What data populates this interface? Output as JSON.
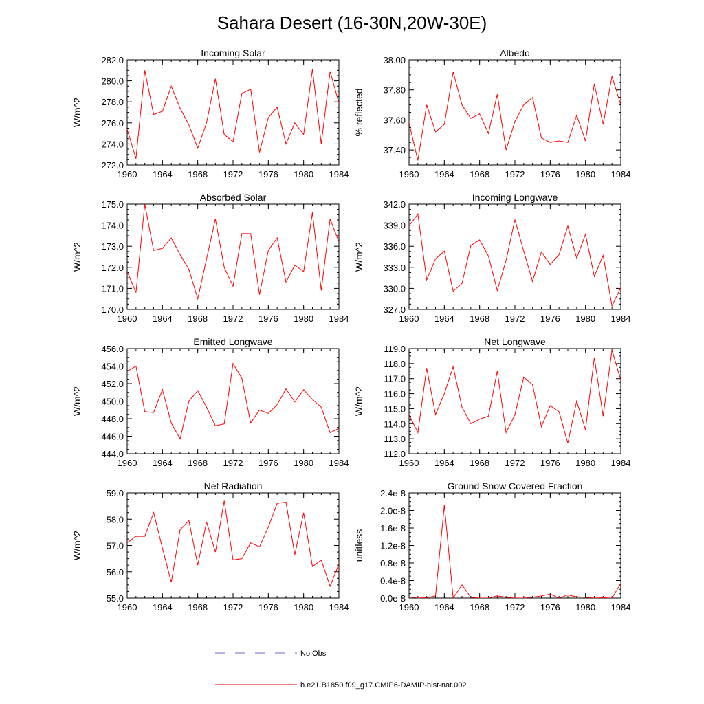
{
  "figure": {
    "title": "Sahara Desert (16-30N,20W-30E)"
  },
  "legend": {
    "items": [
      {
        "label": "No Obs",
        "color": "#6a6ad0",
        "dash": true
      },
      {
        "label": "b.e21.B1850.f09_g17.CMIP6-DAMIP-hist-nat.002",
        "color": "#ff0000",
        "dash": false
      }
    ]
  },
  "chart_data": [
    {
      "type": "line",
      "title": "Incoming Solar",
      "ylabel": "W/m^2",
      "xlim": [
        1960,
        1984
      ],
      "ylim": [
        272.0,
        282.0
      ],
      "xticks": [
        "1960",
        "1964",
        "1968",
        "1972",
        "1976",
        "1980",
        "1984"
      ],
      "yticks": [
        "272.0",
        "274.0",
        "276.0",
        "278.0",
        "280.0",
        "282.0"
      ],
      "x": [
        1960,
        1961,
        1962,
        1963,
        1964,
        1965,
        1966,
        1967,
        1968,
        1969,
        1970,
        1971,
        1972,
        1973,
        1974,
        1975,
        1976,
        1977,
        1978,
        1979,
        1980,
        1981,
        1982,
        1983,
        1984
      ],
      "series": [
        {
          "color": "#ff0000",
          "values": [
            275.4,
            272.6,
            281.0,
            276.8,
            277.1,
            279.5,
            277.4,
            275.8,
            273.6,
            276.0,
            280.2,
            274.9,
            274.2,
            278.8,
            279.2,
            273.2,
            276.5,
            277.5,
            274.0,
            276.0,
            274.9,
            281.1,
            274.0,
            280.9,
            277.9
          ]
        }
      ]
    },
    {
      "type": "line",
      "title": "Albedo",
      "ylabel": "% reflected",
      "xlim": [
        1960,
        1984
      ],
      "ylim": [
        37.3,
        38.0
      ],
      "xticks": [
        "1960",
        "1964",
        "1968",
        "1972",
        "1976",
        "1980",
        "1984"
      ],
      "yticks": [
        "37.40",
        "37.60",
        "37.80",
        "38.00"
      ],
      "ytickvals": [
        37.4,
        37.6,
        37.8,
        38.0
      ],
      "x": [
        1960,
        1961,
        1962,
        1963,
        1964,
        1965,
        1966,
        1967,
        1968,
        1969,
        1970,
        1971,
        1972,
        1973,
        1974,
        1975,
        1976,
        1977,
        1978,
        1979,
        1980,
        1981,
        1982,
        1983,
        1984
      ],
      "series": [
        {
          "color": "#ff0000",
          "values": [
            37.58,
            37.33,
            37.7,
            37.52,
            37.57,
            37.92,
            37.7,
            37.61,
            37.64,
            37.51,
            37.77,
            37.4,
            37.59,
            37.7,
            37.75,
            37.48,
            37.45,
            37.46,
            37.45,
            37.63,
            37.46,
            37.84,
            37.57,
            37.89,
            37.7
          ]
        }
      ]
    },
    {
      "type": "line",
      "title": "Absorbed Solar",
      "ylabel": "W/m^2",
      "xlim": [
        1960,
        1984
      ],
      "ylim": [
        170.0,
        175.0
      ],
      "xticks": [
        "1960",
        "1964",
        "1968",
        "1972",
        "1976",
        "1980",
        "1984"
      ],
      "yticks": [
        "170.0",
        "171.0",
        "172.0",
        "173.0",
        "174.0",
        "175.0"
      ],
      "x": [
        1960,
        1961,
        1962,
        1963,
        1964,
        1965,
        1966,
        1967,
        1968,
        1969,
        1970,
        1971,
        1972,
        1973,
        1974,
        1975,
        1976,
        1977,
        1978,
        1979,
        1980,
        1981,
        1982,
        1983,
        1984
      ],
      "series": [
        {
          "color": "#ff0000",
          "values": [
            171.8,
            170.8,
            175.0,
            172.8,
            172.9,
            173.4,
            172.6,
            171.9,
            170.5,
            172.4,
            174.3,
            172.0,
            171.1,
            173.6,
            173.6,
            170.7,
            172.8,
            173.4,
            171.3,
            172.1,
            171.8,
            174.6,
            170.9,
            174.3,
            173.2
          ]
        }
      ]
    },
    {
      "type": "line",
      "title": "Incoming Longwave",
      "ylabel": "W/m^2",
      "xlim": [
        1960,
        1984
      ],
      "ylim": [
        327.0,
        342.0
      ],
      "xticks": [
        "1960",
        "1964",
        "1968",
        "1972",
        "1976",
        "1980",
        "1984"
      ],
      "yticks": [
        "327.0",
        "330.0",
        "333.0",
        "336.0",
        "339.0",
        "342.0"
      ],
      "x": [
        1960,
        1961,
        1962,
        1963,
        1964,
        1965,
        1966,
        1967,
        1968,
        1969,
        1970,
        1971,
        1972,
        1973,
        1974,
        1975,
        1976,
        1977,
        1978,
        1979,
        1980,
        1981,
        1982,
        1983,
        1984
      ],
      "series": [
        {
          "color": "#ff0000",
          "values": [
            338.9,
            340.6,
            331.2,
            334.2,
            335.3,
            329.6,
            330.7,
            336.1,
            336.9,
            334.6,
            329.7,
            334.0,
            339.8,
            335.3,
            331.0,
            335.2,
            333.4,
            334.8,
            338.9,
            334.3,
            337.7,
            331.7,
            334.7,
            327.5,
            330.1
          ]
        }
      ]
    },
    {
      "type": "line",
      "title": "Emitted Longwave",
      "ylabel": "W/m^2",
      "xlim": [
        1960,
        1984
      ],
      "ylim": [
        444.0,
        456.0
      ],
      "xticks": [
        "1960",
        "1964",
        "1968",
        "1972",
        "1976",
        "1980",
        "1984"
      ],
      "yticks": [
        "444.0",
        "446.0",
        "448.0",
        "450.0",
        "452.0",
        "454.0",
        "456.0"
      ],
      "x": [
        1960,
        1961,
        1962,
        1963,
        1964,
        1965,
        1966,
        1967,
        1968,
        1969,
        1970,
        1971,
        1972,
        1973,
        1974,
        1975,
        1976,
        1977,
        1978,
        1979,
        1980,
        1981,
        1982,
        1983,
        1984
      ],
      "series": [
        {
          "color": "#ff0000",
          "values": [
            453.4,
            454.0,
            448.8,
            448.7,
            451.3,
            447.5,
            445.7,
            450.0,
            451.2,
            449.3,
            447.2,
            447.4,
            454.3,
            452.6,
            447.5,
            449.0,
            448.6,
            449.6,
            451.4,
            449.9,
            451.3,
            450.2,
            449.3,
            446.4,
            446.9
          ]
        }
      ]
    },
    {
      "type": "line",
      "title": "Net Longwave",
      "ylabel": "W/m^2",
      "xlim": [
        1960,
        1984
      ],
      "ylim": [
        112.0,
        119.0
      ],
      "xticks": [
        "1960",
        "1964",
        "1968",
        "1972",
        "1976",
        "1980",
        "1984"
      ],
      "yticks": [
        "112.0",
        "113.0",
        "114.0",
        "115.0",
        "116.0",
        "117.0",
        "118.0",
        "119.0"
      ],
      "x": [
        1960,
        1961,
        1962,
        1963,
        1964,
        1965,
        1966,
        1967,
        1968,
        1969,
        1970,
        1971,
        1972,
        1973,
        1974,
        1975,
        1976,
        1977,
        1978,
        1979,
        1980,
        1981,
        1982,
        1983,
        1984
      ],
      "series": [
        {
          "color": "#ff0000",
          "values": [
            114.6,
            113.4,
            117.7,
            114.6,
            116.0,
            117.8,
            115.1,
            114.0,
            114.3,
            114.5,
            117.5,
            113.4,
            114.6,
            117.1,
            116.6,
            113.8,
            115.2,
            114.8,
            112.7,
            115.5,
            113.6,
            118.4,
            114.5,
            118.9,
            116.9
          ]
        }
      ]
    },
    {
      "type": "line",
      "title": "Net Radiation",
      "ylabel": "W/m^2",
      "xlim": [
        1960,
        1984
      ],
      "ylim": [
        55.0,
        59.0
      ],
      "xticks": [
        "1960",
        "1964",
        "1968",
        "1972",
        "1976",
        "1980",
        "1984"
      ],
      "yticks": [
        "55.0",
        "56.0",
        "57.0",
        "58.0",
        "59.0"
      ],
      "x": [
        1960,
        1961,
        1962,
        1963,
        1964,
        1965,
        1966,
        1967,
        1968,
        1969,
        1970,
        1971,
        1972,
        1973,
        1974,
        1975,
        1976,
        1977,
        1978,
        1979,
        1980,
        1981,
        1982,
        1983,
        1984
      ],
      "series": [
        {
          "color": "#ff0000",
          "values": [
            57.1,
            57.35,
            57.35,
            58.25,
            56.9,
            55.6,
            57.6,
            57.95,
            56.25,
            57.9,
            56.75,
            58.7,
            56.45,
            56.5,
            57.1,
            56.95,
            57.7,
            58.6,
            58.65,
            56.65,
            58.25,
            56.2,
            56.45,
            55.45,
            56.3
          ]
        }
      ]
    },
    {
      "type": "line",
      "title": "Ground Snow Covered Fraction",
      "ylabel": "unitless",
      "xlim": [
        1960,
        1984
      ],
      "ylim": [
        0,
        2.4e-08
      ],
      "xticks": [
        "1960",
        "1964",
        "1968",
        "1972",
        "1976",
        "1980",
        "1984"
      ],
      "yticks": [
        "0.0e-8",
        "0.4e-8",
        "0.8e-8",
        "1.2e-8",
        "1.6e-8",
        "2.0e-8",
        "2.4e-8"
      ],
      "ytickvals": [
        0,
        4e-09,
        8e-09,
        1.2e-08,
        1.6e-08,
        2e-08,
        2.4e-08
      ],
      "x": [
        1960,
        1961,
        1962,
        1963,
        1964,
        1965,
        1966,
        1967,
        1968,
        1969,
        1970,
        1971,
        1972,
        1973,
        1974,
        1975,
        1976,
        1977,
        1978,
        1979,
        1980,
        1981,
        1982,
        1983,
        1984
      ],
      "series": [
        {
          "color": "#ff0000",
          "values": [
            3e-10,
            0.0,
            1e-10,
            5e-10,
            2.12e-08,
            0.0,
            3e-09,
            2e-10,
            0.0,
            0.0,
            5e-10,
            2e-10,
            0.0,
            0.0,
            2e-10,
            5e-10,
            9e-10,
            0.0,
            7e-10,
            3e-10,
            2e-10,
            0.0,
            1e-10,
            0.0,
            3.3e-09
          ]
        }
      ]
    }
  ]
}
